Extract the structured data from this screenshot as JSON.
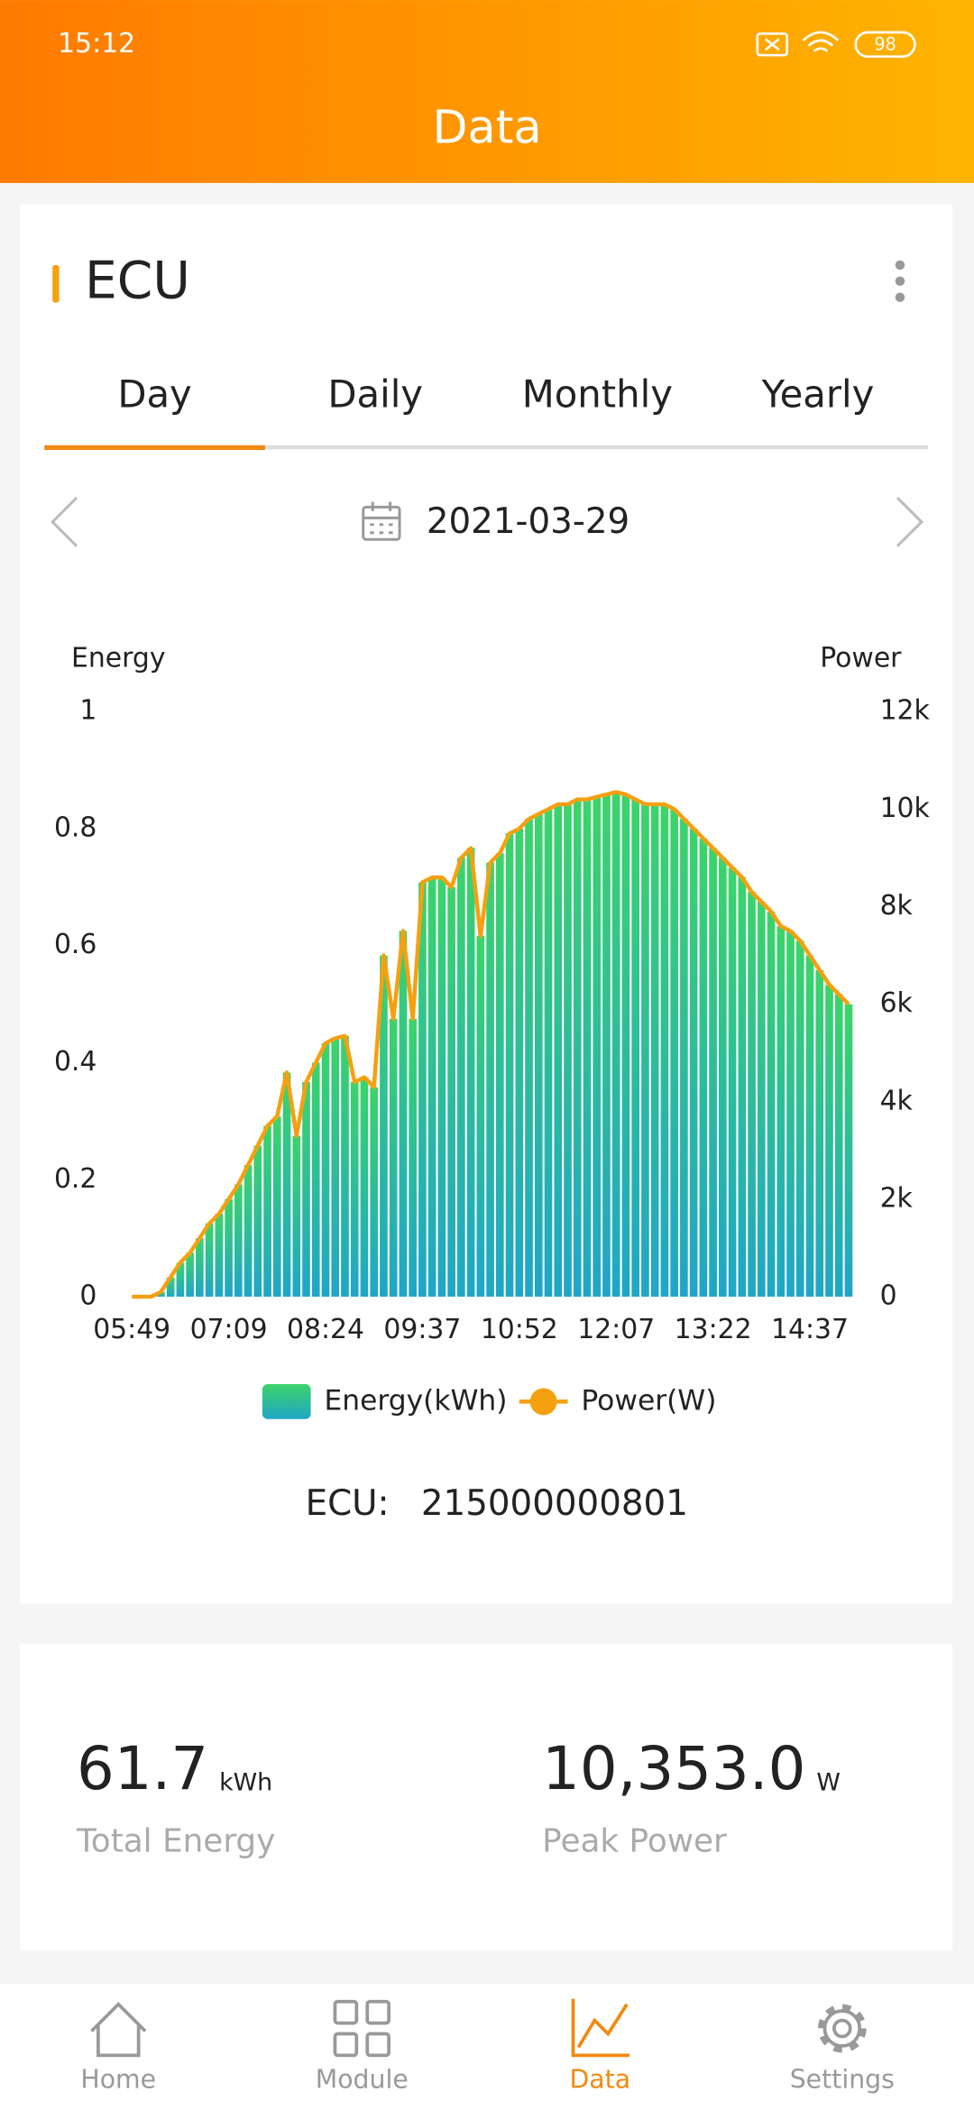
{
  "status_bar": {
    "time": "15:12",
    "battery": "98"
  },
  "header": {
    "title": "Data"
  },
  "card": {
    "title": "ECU",
    "tabs": [
      "Day",
      "Daily",
      "Monthly",
      "Yearly"
    ],
    "date": "2021-03-29",
    "ecu_label": "ECU:",
    "ecu_id": "215000000801"
  },
  "chart_data": {
    "type": "combo",
    "y_label": "Energy",
    "y2_label": "Power",
    "categories": [
      "05:49",
      null,
      null,
      null,
      null,
      null,
      null,
      null,
      null,
      null,
      "07:09",
      null,
      null,
      null,
      null,
      null,
      null,
      null,
      null,
      null,
      "08:24",
      null,
      null,
      null,
      null,
      null,
      null,
      null,
      null,
      null,
      "09:37",
      null,
      null,
      null,
      null,
      null,
      null,
      null,
      null,
      null,
      "10:52",
      null,
      null,
      null,
      null,
      null,
      null,
      null,
      null,
      null,
      "12:07",
      null,
      null,
      null,
      null,
      null,
      null,
      null,
      null,
      null,
      "13:22",
      null,
      null,
      null,
      null,
      null,
      null,
      null,
      null,
      null,
      "14:37",
      null,
      null,
      null,
      null
    ],
    "series": [
      {
        "name": "Energy(kWh)",
        "type": "bar",
        "gradient": [
          "#3cd46a",
          "#1fa6c8"
        ],
        "values": [
          0,
          0,
          0,
          0.008,
          0.033,
          0.058,
          0.075,
          0.1,
          0.125,
          0.142,
          0.167,
          0.192,
          0.225,
          0.258,
          0.292,
          0.308,
          0.383,
          0.275,
          0.367,
          0.4,
          0.433,
          0.442,
          0.446,
          0.367,
          0.375,
          0.358,
          0.583,
          0.475,
          0.625,
          0.475,
          0.708,
          0.717,
          0.717,
          0.7,
          0.75,
          0.767,
          0.617,
          0.742,
          0.758,
          0.792,
          0.8,
          0.817,
          0.825,
          0.833,
          0.842,
          0.842,
          0.85,
          0.85,
          0.854,
          0.858,
          0.863,
          0.858,
          0.85,
          0.842,
          0.842,
          0.842,
          0.833,
          0.817,
          0.8,
          0.783,
          0.767,
          0.75,
          0.733,
          0.717,
          0.692,
          0.675,
          0.658,
          0.633,
          0.625,
          0.608,
          0.583,
          0.558,
          0.533,
          0.517,
          0.5
        ]
      },
      {
        "name": "Power(W)",
        "type": "line",
        "axis": "y2",
        "color": "#f5a011",
        "values": [
          0,
          0,
          0,
          100,
          400,
          700,
          900,
          1200,
          1500,
          1700,
          2000,
          2300,
          2700,
          3100,
          3500,
          3700,
          4600,
          3300,
          4400,
          4800,
          5200,
          5300,
          5350,
          4400,
          4500,
          4300,
          7000,
          5700,
          7500,
          5700,
          8500,
          8600,
          8600,
          8400,
          9000,
          9200,
          7400,
          8900,
          9100,
          9500,
          9600,
          9800,
          9900,
          10000,
          10100,
          10100,
          10200,
          10200,
          10250,
          10300,
          10350,
          10300,
          10200,
          10100,
          10100,
          10100,
          10000,
          9800,
          9600,
          9400,
          9200,
          9000,
          8800,
          8600,
          8300,
          8100,
          7900,
          7600,
          7500,
          7300,
          7000,
          6700,
          6400,
          6200,
          6000
        ]
      }
    ],
    "ylim": [
      0,
      1
    ],
    "yticks": [
      0,
      0.2,
      0.4,
      0.6,
      0.8,
      1
    ],
    "y2lim": [
      0,
      12000
    ],
    "y2ticks": [
      0,
      {
        "value": 2000,
        "label": "2k"
      },
      {
        "value": 4000,
        "label": "4k"
      },
      {
        "value": 6000,
        "label": "6k"
      },
      {
        "value": 8000,
        "label": "8k"
      },
      {
        "value": 10000,
        "label": "10k"
      },
      {
        "value": 12000,
        "label": "12k"
      }
    ],
    "grid": false,
    "legend": "bottom"
  },
  "summary": [
    {
      "value": "61.7",
      "unit": "kWh",
      "label": "Total Energy"
    },
    {
      "value": "10,353.0",
      "unit": "W",
      "label": "Peak Power"
    }
  ],
  "nav": [
    "Home",
    "Module",
    "Data",
    "Settings"
  ]
}
